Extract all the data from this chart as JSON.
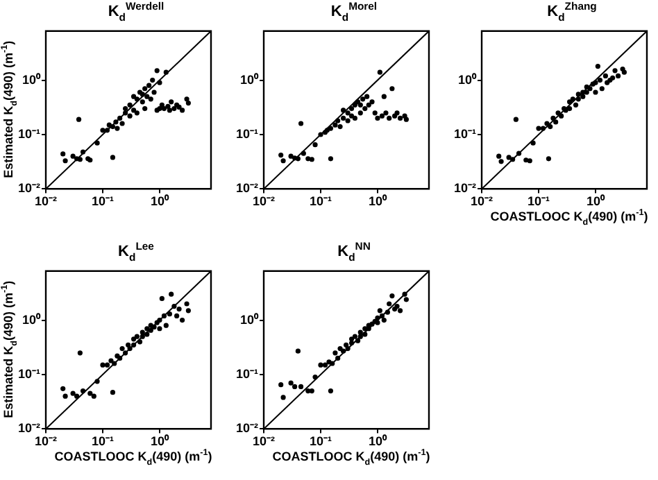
{
  "chart_data": [
    {
      "type": "scatter",
      "title": "K$_{d}$$^{Werdell}$",
      "ylabel": "Estimated K$_{d}$(490) (m$^{-1}$)",
      "log": "xy",
      "xlim": [
        0.01,
        8
      ],
      "ylim": [
        0.01,
        8
      ],
      "xticks": [
        {
          "value": 0.01,
          "label": "10⁻²"
        },
        {
          "value": 0.1,
          "label": "10⁻¹"
        },
        {
          "value": 1,
          "label": "10⁰"
        }
      ],
      "yticks": [
        {
          "value": 0.01,
          "label": "10⁻²"
        },
        {
          "value": 0.1,
          "label": "10⁻¹"
        },
        {
          "value": 1,
          "label": "10⁰"
        }
      ],
      "series": [
        {
          "marker": "circle",
          "color": "#000000",
          "x": [
            0.02,
            0.022,
            0.03,
            0.035,
            0.04,
            0.038,
            0.045,
            0.055,
            0.06,
            0.08,
            0.1,
            0.12,
            0.15,
            0.13,
            0.15,
            0.17,
            0.18,
            0.2,
            0.22,
            0.25,
            0.25,
            0.3,
            0.3,
            0.35,
            0.35,
            0.4,
            0.4,
            0.45,
            0.5,
            0.5,
            0.55,
            0.55,
            0.6,
            0.65,
            0.7,
            0.75,
            0.8,
            0.9,
            1.0,
            1.1,
            1.2,
            1.3,
            1.4,
            1.5,
            1.6,
            1.8,
            2.0,
            2.2,
            2.5,
            3.0,
            3.2,
            1.0,
            0.9
          ],
          "values": [
            0.044,
            0.033,
            0.04,
            0.036,
            0.035,
            0.19,
            0.048,
            0.036,
            0.034,
            0.07,
            0.12,
            0.12,
            0.038,
            0.15,
            0.14,
            0.17,
            0.13,
            0.2,
            0.16,
            0.25,
            0.3,
            0.22,
            0.35,
            0.28,
            0.5,
            0.25,
            0.45,
            0.6,
            0.4,
            0.55,
            0.3,
            0.7,
            0.5,
            0.8,
            0.45,
            1.0,
            0.6,
            1.5,
            0.9,
            0.35,
            0.3,
            1.4,
            0.33,
            0.28,
            0.4,
            0.3,
            0.35,
            0.32,
            0.28,
            0.45,
            0.38,
            0.3,
            0.28
          ]
        },
        {
          "type": "line",
          "marker": "none",
          "color": "#000000",
          "x": [
            0.01,
            8
          ],
          "values": [
            0.01,
            8
          ]
        }
      ]
    },
    {
      "type": "scatter",
      "title": "K$_{d}$$^{Morel}$",
      "log": "xy",
      "xlim": [
        0.01,
        8
      ],
      "ylim": [
        0.01,
        8
      ],
      "xticks": [
        {
          "value": 0.01,
          "label": "10⁻²"
        },
        {
          "value": 0.1,
          "label": "10⁻¹"
        },
        {
          "value": 1,
          "label": "10⁰"
        }
      ],
      "yticks": [
        {
          "value": 0.01,
          "label": "10⁻²"
        },
        {
          "value": 0.1,
          "label": "10⁻¹"
        },
        {
          "value": 1,
          "label": "10⁰"
        }
      ],
      "series": [
        {
          "marker": "circle",
          "color": "#000000",
          "x": [
            0.02,
            0.022,
            0.03,
            0.035,
            0.04,
            0.045,
            0.05,
            0.06,
            0.07,
            0.08,
            0.1,
            0.12,
            0.15,
            0.13,
            0.15,
            0.18,
            0.2,
            0.22,
            0.25,
            0.25,
            0.3,
            0.3,
            0.35,
            0.35,
            0.4,
            0.4,
            0.45,
            0.5,
            0.5,
            0.55,
            0.6,
            0.65,
            0.7,
            0.8,
            0.9,
            1.0,
            1.1,
            1.2,
            1.3,
            1.4,
            1.6,
            1.8,
            2.0,
            2.2,
            2.5,
            3.0,
            3.2
          ],
          "values": [
            0.042,
            0.033,
            0.04,
            0.037,
            0.036,
            0.16,
            0.045,
            0.036,
            0.035,
            0.065,
            0.1,
            0.11,
            0.036,
            0.12,
            0.13,
            0.15,
            0.18,
            0.14,
            0.2,
            0.28,
            0.18,
            0.25,
            0.22,
            0.3,
            0.2,
            0.35,
            0.4,
            0.25,
            0.35,
            0.45,
            0.3,
            0.5,
            0.35,
            0.4,
            0.25,
            0.2,
            1.4,
            0.22,
            0.5,
            0.25,
            0.2,
            0.7,
            0.22,
            0.25,
            0.2,
            0.22,
            0.19
          ]
        },
        {
          "type": "line",
          "marker": "none",
          "color": "#000000",
          "x": [
            0.01,
            8
          ],
          "values": [
            0.01,
            8
          ]
        }
      ]
    },
    {
      "type": "scatter",
      "title": "K$_{d}$$^{Zhang}$",
      "xlabel": "COASTLOOC K$_{d}$(490) (m$^{-1}$)",
      "log": "xy",
      "xlim": [
        0.01,
        8
      ],
      "ylim": [
        0.01,
        8
      ],
      "xticks": [
        {
          "value": 0.01,
          "label": "10⁻²"
        },
        {
          "value": 0.1,
          "label": "10⁻¹"
        },
        {
          "value": 1,
          "label": "10⁰"
        }
      ],
      "yticks": [
        {
          "value": 0.01,
          "label": "10⁻²"
        },
        {
          "value": 0.1,
          "label": "10⁻¹"
        },
        {
          "value": 1,
          "label": "10⁰"
        }
      ],
      "series": [
        {
          "marker": "circle",
          "color": "#000000",
          "x": [
            0.02,
            0.022,
            0.03,
            0.035,
            0.04,
            0.045,
            0.06,
            0.07,
            0.08,
            0.1,
            0.12,
            0.15,
            0.14,
            0.16,
            0.18,
            0.2,
            0.22,
            0.25,
            0.28,
            0.3,
            0.35,
            0.35,
            0.4,
            0.45,
            0.5,
            0.5,
            0.6,
            0.6,
            0.7,
            0.7,
            0.8,
            0.9,
            1.0,
            1.0,
            1.1,
            1.2,
            1.3,
            1.5,
            1.6,
            1.8,
            2.0,
            2.2,
            2.5,
            3.0,
            3.2
          ],
          "values": [
            0.04,
            0.032,
            0.038,
            0.035,
            0.19,
            0.045,
            0.034,
            0.033,
            0.07,
            0.13,
            0.13,
            0.036,
            0.16,
            0.14,
            0.2,
            0.17,
            0.25,
            0.22,
            0.3,
            0.28,
            0.4,
            0.3,
            0.45,
            0.35,
            0.55,
            0.45,
            0.6,
            0.5,
            0.75,
            0.6,
            0.7,
            0.85,
            0.9,
            0.6,
            1.8,
            1.0,
            0.7,
            1.2,
            0.9,
            1.0,
            1.1,
            1.5,
            1.2,
            1.6,
            1.4
          ]
        },
        {
          "type": "line",
          "marker": "none",
          "color": "#000000",
          "x": [
            0.01,
            8
          ],
          "values": [
            0.01,
            8
          ]
        }
      ]
    },
    {
      "type": "scatter",
      "title": "K$_{d}$$^{Lee}$",
      "xlabel": "COASTLOOC K$_{d}$(490) (m$^{-1}$)",
      "ylabel": "Estimated K$_{d}$(490) (m$^{-1}$)",
      "log": "xy",
      "xlim": [
        0.01,
        8
      ],
      "ylim": [
        0.01,
        8
      ],
      "xticks": [
        {
          "value": 0.01,
          "label": "10⁻²"
        },
        {
          "value": 0.1,
          "label": "10⁻¹"
        },
        {
          "value": 1,
          "label": "10⁰"
        }
      ],
      "yticks": [
        {
          "value": 0.01,
          "label": "10⁻²"
        },
        {
          "value": 0.1,
          "label": "10⁻¹"
        },
        {
          "value": 1,
          "label": "10⁰"
        }
      ],
      "series": [
        {
          "marker": "circle",
          "color": "#000000",
          "x": [
            0.02,
            0.022,
            0.03,
            0.035,
            0.04,
            0.045,
            0.06,
            0.07,
            0.08,
            0.1,
            0.12,
            0.15,
            0.14,
            0.16,
            0.18,
            0.2,
            0.22,
            0.25,
            0.28,
            0.3,
            0.35,
            0.35,
            0.4,
            0.45,
            0.5,
            0.5,
            0.6,
            0.6,
            0.7,
            0.7,
            0.8,
            0.9,
            1.0,
            1.0,
            1.1,
            1.2,
            1.3,
            1.5,
            1.6,
            1.8,
            2.0,
            2.2,
            2.5,
            3.0,
            3.2
          ],
          "values": [
            0.055,
            0.04,
            0.045,
            0.04,
            0.25,
            0.05,
            0.045,
            0.04,
            0.075,
            0.15,
            0.15,
            0.047,
            0.18,
            0.16,
            0.22,
            0.2,
            0.3,
            0.25,
            0.35,
            0.3,
            0.45,
            0.35,
            0.5,
            0.4,
            0.6,
            0.5,
            0.7,
            0.55,
            0.8,
            0.65,
            0.75,
            0.9,
            1.0,
            0.7,
            2.5,
            1.2,
            0.8,
            1.3,
            3.0,
            1.8,
            1.2,
            1.6,
            1.0,
            2.0,
            1.5
          ]
        },
        {
          "type": "line",
          "marker": "none",
          "color": "#000000",
          "x": [
            0.01,
            8
          ],
          "values": [
            0.01,
            8
          ]
        }
      ]
    },
    {
      "type": "scatter",
      "title": "K$_{d}$$^{NN}$",
      "xlabel": "COASTLOOC K$_{d}$(490) (m$^{-1}$)",
      "log": "xy",
      "xlim": [
        0.01,
        8
      ],
      "ylim": [
        0.01,
        8
      ],
      "xticks": [
        {
          "value": 0.01,
          "label": "10⁻²"
        },
        {
          "value": 0.1,
          "label": "10⁻¹"
        },
        {
          "value": 1,
          "label": "10⁰"
        }
      ],
      "yticks": [
        {
          "value": 0.01,
          "label": "10⁻²"
        },
        {
          "value": 0.1,
          "label": "10⁻¹"
        },
        {
          "value": 1,
          "label": "10⁰"
        }
      ],
      "series": [
        {
          "marker": "circle",
          "color": "#000000",
          "x": [
            0.02,
            0.022,
            0.03,
            0.035,
            0.04,
            0.045,
            0.06,
            0.07,
            0.08,
            0.1,
            0.12,
            0.15,
            0.14,
            0.16,
            0.18,
            0.2,
            0.22,
            0.25,
            0.28,
            0.3,
            0.35,
            0.35,
            0.4,
            0.45,
            0.5,
            0.5,
            0.6,
            0.6,
            0.7,
            0.7,
            0.8,
            0.9,
            1.0,
            1.0,
            1.1,
            1.2,
            1.3,
            1.5,
            1.6,
            1.8,
            2.0,
            2.2,
            2.5,
            3.0,
            3.2
          ],
          "values": [
            0.065,
            0.038,
            0.07,
            0.06,
            0.27,
            0.06,
            0.05,
            0.05,
            0.09,
            0.15,
            0.15,
            0.05,
            0.17,
            0.16,
            0.25,
            0.2,
            0.3,
            0.27,
            0.35,
            0.3,
            0.45,
            0.38,
            0.5,
            0.42,
            0.6,
            0.5,
            0.7,
            0.55,
            0.8,
            0.7,
            0.85,
            0.95,
            1.1,
            0.9,
            1.5,
            1.2,
            1.0,
            1.4,
            2.0,
            2.8,
            1.6,
            1.8,
            1.5,
            3.0,
            2.4
          ]
        },
        {
          "type": "line",
          "marker": "none",
          "color": "#000000",
          "x": [
            0.01,
            8
          ],
          "values": [
            0.01,
            8
          ]
        }
      ]
    }
  ]
}
